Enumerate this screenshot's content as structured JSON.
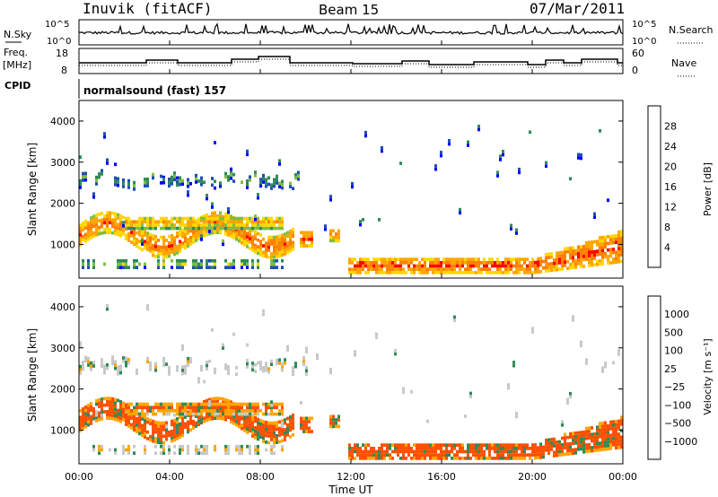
{
  "header": {
    "station": "Inuvik (fitACF)",
    "beam": "Beam 15",
    "date": "07/Mar/2011"
  },
  "panels": {
    "nsky": {
      "left_label": "N.Sky",
      "ticks_left": [
        "10^5",
        "10^0"
      ],
      "ticks_right": [
        "10^5",
        "10^0"
      ],
      "right_label": "N.Search"
    },
    "freq": {
      "left_label_1": "Freq.",
      "left_label_2": "[MHz]",
      "ticks_left": [
        "18",
        "8"
      ],
      "ticks_right": [
        "60",
        "0"
      ],
      "right_label": "Nave"
    },
    "cpid": {
      "left_label": "CPID",
      "program": "normalsound (fast) 157"
    }
  },
  "colors": {
    "power_scale": [
      "#0000ff",
      "#1f4fb0",
      "#2e8b57",
      "#7fbf3f",
      "#ffd700",
      "#ffa500",
      "#ff7f00",
      "#ff0000"
    ],
    "velocity_scale": [
      "#ff0000",
      "#ff5000",
      "#ff8c00",
      "#ffa500",
      "#c8c8c8",
      "#7fcf3f",
      "#2e8b57",
      "#1f4fb0",
      "#0000ff"
    ]
  },
  "chart_data": [
    {
      "type": "heatmap",
      "title": "Power",
      "ylabel": "Slant Range [km]",
      "xlabel": "Time UT",
      "x_ticks": [
        "00:00",
        "04:00",
        "08:00",
        "12:00",
        "16:00",
        "20:00",
        "00:00"
      ],
      "y_ticks": [
        1000,
        2000,
        3000,
        4000
      ],
      "ylim": [
        180,
        4500
      ],
      "colorbar": {
        "label": "Power [dB]",
        "ticks": [
          4,
          8,
          12,
          16,
          20,
          24,
          28
        ],
        "range": [
          0,
          30
        ]
      }
    },
    {
      "type": "heatmap",
      "title": "Velocity",
      "ylabel": "Slant Range [km]",
      "xlabel": "Time UT",
      "x_ticks": [
        "00:00",
        "04:00",
        "08:00",
        "12:00",
        "16:00",
        "20:00",
        "00:00"
      ],
      "y_ticks": [
        1000,
        2000,
        3000,
        4000
      ],
      "ylim": [
        180,
        4500
      ],
      "colorbar": {
        "label": "Velocity [m s⁻¹]",
        "ticks": [
          "1000",
          "500",
          "100",
          "25",
          "−25",
          "−100",
          "−500",
          "−1000"
        ]
      }
    }
  ]
}
